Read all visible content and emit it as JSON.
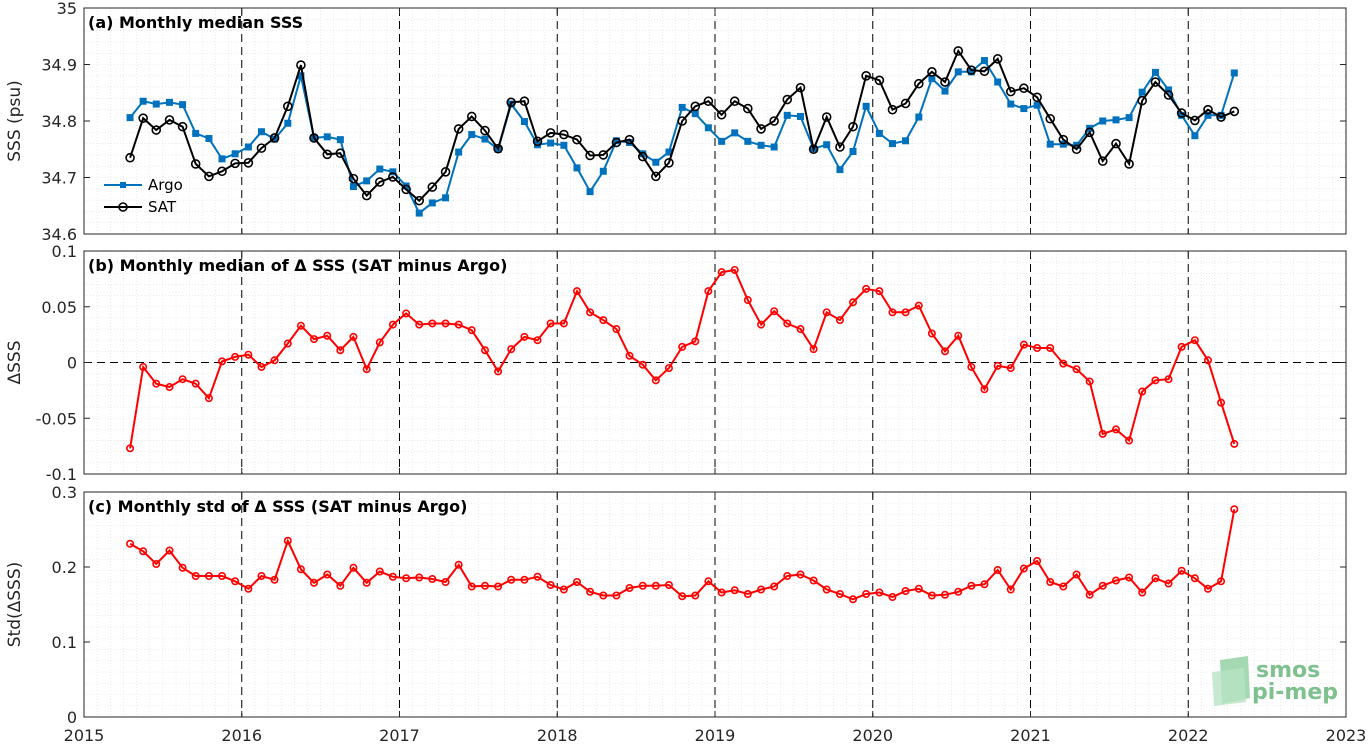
{
  "chart_data": [
    {
      "type": "line",
      "title": "(a) Monthly median SSS",
      "ylabel": "SSS (psu)",
      "ylim": [
        34.6,
        35
      ],
      "yticks": [
        "34.6",
        "34.7",
        "34.8",
        "34.9",
        "35"
      ],
      "xlim": [
        2015,
        2023
      ],
      "xticks": [
        "2015",
        "2016",
        "2017",
        "2018",
        "2019",
        "2020",
        "2021",
        "2022",
        "2023"
      ],
      "grid": true,
      "legend": "bottom-left",
      "colors": {
        "Argo": "#0072bd",
        "SAT": "#000000"
      },
      "x": [
        2015.292,
        2015.375,
        2015.458,
        2015.542,
        2015.625,
        2015.708,
        2015.792,
        2015.875,
        2015.958,
        2016.042,
        2016.125,
        2016.208,
        2016.292,
        2016.375,
        2016.458,
        2016.542,
        2016.625,
        2016.708,
        2016.792,
        2016.875,
        2016.958,
        2017.042,
        2017.125,
        2017.208,
        2017.292,
        2017.375,
        2017.458,
        2017.542,
        2017.625,
        2017.708,
        2017.792,
        2017.875,
        2017.958,
        2018.042,
        2018.125,
        2018.208,
        2018.292,
        2018.375,
        2018.458,
        2018.542,
        2018.625,
        2018.708,
        2018.792,
        2018.875,
        2018.958,
        2019.042,
        2019.125,
        2019.208,
        2019.292,
        2019.375,
        2019.458,
        2019.542,
        2019.625,
        2019.708,
        2019.792,
        2019.875,
        2019.958,
        2020.042,
        2020.125,
        2020.208,
        2020.292,
        2020.375,
        2020.458,
        2020.542,
        2020.625,
        2020.708,
        2020.792,
        2020.875,
        2020.958,
        2021.042,
        2021.125,
        2021.208,
        2021.292,
        2021.375,
        2021.458,
        2021.542,
        2021.625,
        2021.708,
        2021.792,
        2021.875,
        2021.958,
        2022.042,
        2022.125,
        2022.208,
        2022.292
      ],
      "series": [
        {
          "name": "Argo",
          "values": [
            34.806,
            34.835,
            34.83,
            34.833,
            34.829,
            34.778,
            34.769,
            34.733,
            34.742,
            34.754,
            34.781,
            34.768,
            34.796,
            34.88,
            34.77,
            34.772,
            34.767,
            34.684,
            34.694,
            34.715,
            34.71,
            34.685,
            34.637,
            34.655,
            34.664,
            34.745,
            34.776,
            34.768,
            34.75,
            34.83,
            34.799,
            34.758,
            34.761,
            34.757,
            34.717,
            34.675,
            34.711,
            34.765,
            34.762,
            34.742,
            34.727,
            34.745,
            34.824,
            34.813,
            34.788,
            34.764,
            34.779,
            34.764,
            34.757,
            34.754,
            34.81,
            34.808,
            34.751,
            34.758,
            34.714,
            34.746,
            34.826,
            34.778,
            34.76,
            34.765,
            34.807,
            34.875,
            34.853,
            34.887,
            34.887,
            34.907,
            34.869,
            34.83,
            34.822,
            34.828,
            34.759,
            34.759,
            34.757,
            34.787,
            34.8,
            34.802,
            34.806,
            34.851,
            34.886,
            34.855,
            34.81,
            34.774,
            34.81,
            34.81,
            34.885
          ]
        },
        {
          "name": "SAT",
          "values": [
            34.735,
            34.805,
            34.784,
            34.802,
            34.79,
            34.724,
            34.702,
            34.711,
            34.725,
            34.726,
            34.752,
            34.77,
            34.826,
            34.899,
            34.77,
            34.741,
            34.743,
            34.698,
            34.668,
            34.692,
            34.701,
            34.679,
            34.659,
            34.683,
            34.71,
            34.786,
            34.808,
            34.783,
            34.751,
            34.833,
            34.835,
            34.764,
            34.779,
            34.776,
            34.767,
            34.739,
            34.74,
            34.762,
            34.767,
            34.737,
            34.702,
            34.726,
            34.8,
            34.826,
            34.835,
            34.811,
            34.835,
            34.822,
            34.786,
            34.8,
            34.838,
            34.859,
            34.75,
            34.807,
            34.754,
            34.79,
            34.88,
            34.872,
            34.82,
            34.831,
            34.866,
            34.887,
            34.869,
            34.924,
            34.89,
            34.888,
            34.91,
            34.852,
            34.858,
            34.842,
            34.804,
            34.767,
            34.75,
            34.78,
            34.729,
            34.76,
            34.724,
            34.836,
            34.869,
            34.846,
            34.814,
            34.801,
            34.82,
            34.807,
            34.817
          ]
        }
      ]
    },
    {
      "type": "line",
      "title": "(b) Monthly median of Δ SSS (SAT minus Argo)",
      "ylabel": "ΔSSS",
      "ylim": [
        -0.1,
        0.1
      ],
      "yticks": [
        "-0.1",
        "-0.05",
        "0",
        "0.05",
        "0.1"
      ],
      "xlim": [
        2015,
        2023
      ],
      "grid": true,
      "colors": {
        "line": "#ff0000"
      },
      "series": [
        {
          "values": [
            -0.077,
            -0.004,
            -0.019,
            -0.022,
            -0.015,
            -0.019,
            -0.032,
            0.001,
            0.005,
            0.007,
            -0.004,
            0.002,
            0.017,
            0.033,
            0.021,
            0.024,
            0.011,
            0.023,
            -0.006,
            0.018,
            0.034,
            0.044,
            0.034,
            0.035,
            0.035,
            0.034,
            0.029,
            0.011,
            -0.008,
            0.012,
            0.023,
            0.02,
            0.035,
            0.035,
            0.064,
            0.045,
            0.038,
            0.03,
            0.006,
            -0.002,
            -0.016,
            -0.005,
            0.014,
            0.019,
            0.064,
            0.081,
            0.083,
            0.056,
            0.034,
            0.046,
            0.035,
            0.03,
            0.012,
            0.045,
            0.038,
            0.054,
            0.066,
            0.064,
            0.045,
            0.045,
            0.051,
            0.026,
            0.01,
            0.024,
            -0.004,
            -0.024,
            -0.003,
            -0.005,
            0.016,
            0.013,
            0.013,
            -0.001,
            -0.006,
            -0.017,
            -0.064,
            -0.06,
            -0.07,
            -0.026,
            -0.016,
            -0.015,
            0.014,
            0.02,
            0.002,
            -0.036,
            -0.073
          ]
        }
      ]
    },
    {
      "type": "line",
      "title": "(c) Monthly std of Δ SSS (SAT minus Argo)",
      "ylabel": "Std(ΔSSS)",
      "ylim": [
        0,
        0.3
      ],
      "yticks": [
        "0",
        "0.1",
        "0.2",
        "0.3"
      ],
      "xlim": [
        2015,
        2023
      ],
      "grid": true,
      "colors": {
        "line": "#ff0000"
      },
      "series": [
        {
          "values": [
            0.231,
            0.221,
            0.204,
            0.222,
            0.199,
            0.188,
            0.188,
            0.188,
            0.181,
            0.171,
            0.188,
            0.183,
            0.235,
            0.197,
            0.179,
            0.19,
            0.175,
            0.199,
            0.179,
            0.194,
            0.187,
            0.185,
            0.186,
            0.184,
            0.18,
            0.203,
            0.174,
            0.175,
            0.174,
            0.183,
            0.183,
            0.187,
            0.176,
            0.17,
            0.18,
            0.167,
            0.162,
            0.162,
            0.172,
            0.175,
            0.175,
            0.176,
            0.161,
            0.162,
            0.181,
            0.166,
            0.169,
            0.164,
            0.17,
            0.174,
            0.188,
            0.19,
            0.182,
            0.17,
            0.164,
            0.157,
            0.164,
            0.166,
            0.16,
            0.168,
            0.171,
            0.162,
            0.163,
            0.167,
            0.175,
            0.177,
            0.196,
            0.17,
            0.198,
            0.208,
            0.18,
            0.174,
            0.19,
            0.163,
            0.175,
            0.182,
            0.186,
            0.166,
            0.185,
            0.178,
            0.195,
            0.185,
            0.171,
            0.181,
            0.277
          ]
        }
      ]
    }
  ],
  "watermark": {
    "line1": "smos",
    "line2": "pi-mep"
  }
}
